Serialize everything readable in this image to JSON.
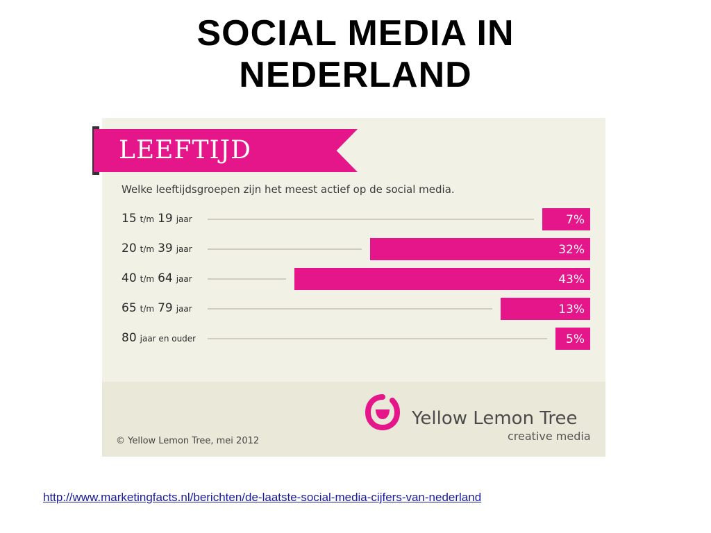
{
  "slide": {
    "title_line1": "SOCIAL MEDIA IN",
    "title_line2": "NEDERLAND",
    "source_link": "http://www.marketingfacts.nl/berichten/de-laatste-social-media-cijfers-van-nederland"
  },
  "infographic": {
    "banner": "LEEFTIJD",
    "question": "Welke leeftijdsgroepen zijn het meest actief op de social media.",
    "brand_name": "Yellow Lemon Tree",
    "brand_sub": "creative media",
    "copyright": "© Yellow Lemon Tree, mei 2012",
    "accent_color": "#e5158a",
    "logo_icon": "lemon-tree-logo-icon"
  },
  "chart_data": {
    "type": "bar",
    "orientation": "horizontal",
    "title": "LEEFTIJD",
    "subtitle": "Welke leeftijdsgroepen zijn het meest actief op de social media.",
    "categories": [
      {
        "from": "15",
        "sep": "t/m",
        "to": "19",
        "unit": "jaar"
      },
      {
        "from": "20",
        "sep": "t/m",
        "to": "39",
        "unit": "jaar"
      },
      {
        "from": "40",
        "sep": "t/m",
        "to": "64",
        "unit": "jaar"
      },
      {
        "from": "65",
        "sep": "t/m",
        "to": "79",
        "unit": "jaar"
      },
      {
        "from": "80",
        "sep": "",
        "to": "",
        "unit": "jaar en ouder"
      }
    ],
    "values": [
      7,
      32,
      43,
      13,
      5
    ],
    "value_labels": [
      "7%",
      "32%",
      "43%",
      "13%",
      "5%"
    ],
    "unit": "%",
    "xlim": [
      0,
      50
    ],
    "bar_color": "#e5158a",
    "grid": false
  }
}
